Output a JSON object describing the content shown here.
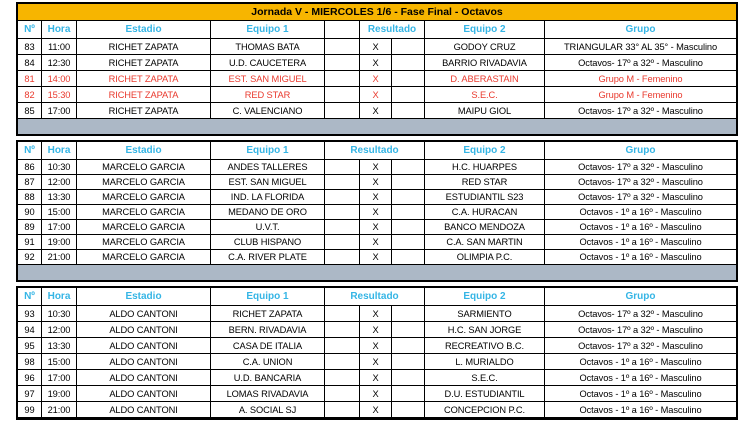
{
  "title": "Jornada V - MIERCOLES 1/6 - Fase Final - Octavos",
  "header": {
    "num": "Nº",
    "hora": "Hora",
    "estadio": "Estadio",
    "equipo1": "Equipo 1",
    "resultado": "Resultado",
    "equipo2": "Equipo 2",
    "grupo": "Grupo"
  },
  "colors": {
    "title_bg": "#F7B500",
    "header_text": "#35B5E5",
    "separator_bg": "#ACB8C6",
    "highlight_text": "#E93A2E",
    "border": "#000000",
    "text": "#000000"
  },
  "sections": [
    {
      "header_resultado_split": true,
      "separator_after": true,
      "rows": [
        {
          "num": "83",
          "hora": "11:00",
          "estadio": "RICHET ZAPATA",
          "equipo1": "THOMAS BATA",
          "resultado": "X",
          "equipo2": "GODOY CRUZ",
          "grupo": "TRIANGULAR 33° AL 35° - Masculino",
          "highlight": false
        },
        {
          "num": "84",
          "hora": "12:30",
          "estadio": "RICHET ZAPATA",
          "equipo1": "U.D. CAUCETERA",
          "resultado": "X",
          "equipo2": "BARRIO RIVADAVIA",
          "grupo": "Octavos- 17º a 32º - Masculino",
          "highlight": false
        },
        {
          "num": "81",
          "hora": "14:00",
          "estadio": "RICHET ZAPATA",
          "equipo1": "EST. SAN MIGUEL",
          "resultado": "X",
          "equipo2": "D. ABERASTAIN",
          "grupo": "Grupo M - Femenino",
          "highlight": true
        },
        {
          "num": "82",
          "hora": "15:30",
          "estadio": "RICHET ZAPATA",
          "equipo1": "RED STAR",
          "resultado": "X",
          "equipo2": "S.E.C.",
          "grupo": "Grupo M - Femenino",
          "highlight": true
        },
        {
          "num": "85",
          "hora": "17:00",
          "estadio": "RICHET ZAPATA",
          "equipo1": "C. VALENCIANO",
          "resultado": "X",
          "equipo2": "MAIPU GIOL",
          "grupo": "Octavos- 17º a 32º - Masculino",
          "highlight": false
        }
      ]
    },
    {
      "header_resultado_split": false,
      "separator_after": true,
      "rows": [
        {
          "num": "86",
          "hora": "10:30",
          "estadio": "MARCELO GARCIA",
          "equipo1": "ANDES TALLERES",
          "resultado": "X",
          "equipo2": "H.C. HUARPES",
          "grupo": "Octavos- 17º a 32º - Masculino",
          "highlight": false
        },
        {
          "num": "87",
          "hora": "12:00",
          "estadio": "MARCELO GARCIA",
          "equipo1": "EST. SAN MIGUEL",
          "resultado": "X",
          "equipo2": "RED STAR",
          "grupo": "Octavos- 17º a 32º - Masculino",
          "highlight": false
        },
        {
          "num": "88",
          "hora": "13:30",
          "estadio": "MARCELO GARCIA",
          "equipo1": "IND. LA FLORIDA",
          "resultado": "X",
          "equipo2": "ESTUDIANTIL S23",
          "grupo": "Octavos- 17º a 32º - Masculino",
          "highlight": false
        },
        {
          "num": "90",
          "hora": "15:00",
          "estadio": "MARCELO GARCIA",
          "equipo1": "MEDANO DE ORO",
          "resultado": "X",
          "equipo2": "C.A. HURACAN",
          "grupo": "Octavos - 1º a 16º - Masculino",
          "highlight": false
        },
        {
          "num": "89",
          "hora": "17:00",
          "estadio": "MARCELO GARCIA",
          "equipo1": "U.V.T.",
          "resultado": "X",
          "equipo2": "BANCO MENDOZA",
          "grupo": "Octavos - 1º a 16º - Masculino",
          "highlight": false
        },
        {
          "num": "91",
          "hora": "19:00",
          "estadio": "MARCELO GARCIA",
          "equipo1": "CLUB HISPANO",
          "resultado": "X",
          "equipo2": "C.A. SAN MARTIN",
          "grupo": "Octavos - 1º a 16º - Masculino",
          "highlight": false
        },
        {
          "num": "92",
          "hora": "21:00",
          "estadio": "MARCELO GARCIA",
          "equipo1": "C.A. RIVER PLATE",
          "resultado": "X",
          "equipo2": "OLIMPIA P.C.",
          "grupo": "Octavos - 1º a 16º - Masculino",
          "highlight": false
        }
      ]
    },
    {
      "header_resultado_split": false,
      "separator_after": false,
      "rows": [
        {
          "num": "93",
          "hora": "10:30",
          "estadio": "ALDO CANTONI",
          "equipo1": "RICHET ZAPATA",
          "resultado": "X",
          "equipo2": "SARMIENTO",
          "grupo": "Octavos- 17º a 32º - Masculino",
          "highlight": false
        },
        {
          "num": "94",
          "hora": "12:00",
          "estadio": "ALDO CANTONI",
          "equipo1": "BERN. RIVADAVIA",
          "resultado": "X",
          "equipo2": "H.C. SAN JORGE",
          "grupo": "Octavos- 17º a 32º - Masculino",
          "highlight": false
        },
        {
          "num": "95",
          "hora": "13:30",
          "estadio": "ALDO CANTONI",
          "equipo1": "CASA DE ITALIA",
          "resultado": "X",
          "equipo2": "RECREATIVO B.C.",
          "grupo": "Octavos- 17º a 32º - Masculino",
          "highlight": false
        },
        {
          "num": "98",
          "hora": "15:00",
          "estadio": "ALDO CANTONI",
          "equipo1": "C.A. UNION",
          "resultado": "X",
          "equipo2": "L. MURIALDO",
          "grupo": "Octavos - 1º a 16º - Masculino",
          "highlight": false
        },
        {
          "num": "96",
          "hora": "17:00",
          "estadio": "ALDO CANTONI",
          "equipo1": "U.D. BANCARIA",
          "resultado": "X",
          "equipo2": "S.E.C.",
          "grupo": "Octavos - 1º a 16º - Masculino",
          "highlight": false
        },
        {
          "num": "97",
          "hora": "19:00",
          "estadio": "ALDO CANTONI",
          "equipo1": "LOMAS RIVADAVIA",
          "resultado": "X",
          "equipo2": "D.U. ESTUDIANTIL",
          "grupo": "Octavos - 1º a 16º - Masculino",
          "highlight": false
        },
        {
          "num": "99",
          "hora": "21:00",
          "estadio": "ALDO CANTONI",
          "equipo1": "A. SOCIAL SJ",
          "resultado": "X",
          "equipo2": "CONCEPCION P.C.",
          "grupo": "Octavos - 1º a 16º - Masculino",
          "highlight": false
        }
      ]
    }
  ]
}
